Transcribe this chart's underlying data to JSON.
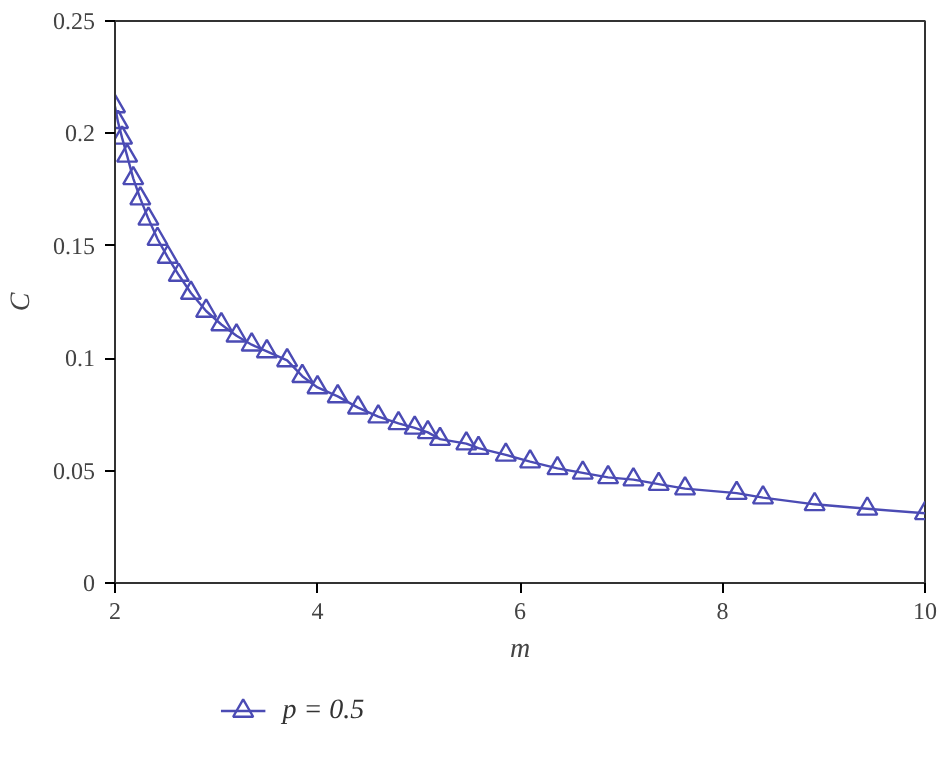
{
  "chart_data": {
    "type": "line",
    "xlabel": "m",
    "ylabel": "C",
    "xlim": [
      2,
      10
    ],
    "ylim": [
      0,
      0.25
    ],
    "xticks": [
      2,
      4,
      6,
      8,
      10
    ],
    "yticks": [
      0,
      0.05,
      0.1,
      0.15,
      0.2,
      0.25
    ],
    "grid": false,
    "legend": "bottom",
    "marker": "triangle",
    "line_style": "solid",
    "series": [
      {
        "name": "p = 0.5",
        "color": "#4b4bb4",
        "x": [
          2.0,
          2.03,
          2.07,
          2.12,
          2.18,
          2.25,
          2.33,
          2.42,
          2.52,
          2.63,
          2.75,
          2.9,
          3.05,
          3.2,
          3.35,
          3.5,
          3.7,
          3.85,
          4.0,
          4.2,
          4.4,
          4.6,
          4.8,
          4.96,
          5.09,
          5.21,
          5.47,
          5.59,
          5.86,
          6.1,
          6.37,
          6.62,
          6.87,
          7.12,
          7.37,
          7.63,
          8.14,
          8.4,
          8.91,
          9.43,
          10.0
        ],
        "values": [
          0.212,
          0.205,
          0.198,
          0.19,
          0.18,
          0.171,
          0.162,
          0.153,
          0.145,
          0.137,
          0.129,
          0.121,
          0.115,
          0.11,
          0.106,
          0.103,
          0.099,
          0.092,
          0.087,
          0.083,
          0.078,
          0.074,
          0.071,
          0.069,
          0.067,
          0.064,
          0.062,
          0.06,
          0.057,
          0.054,
          0.051,
          0.049,
          0.047,
          0.046,
          0.044,
          0.042,
          0.04,
          0.038,
          0.035,
          0.033,
          0.031
        ]
      }
    ]
  }
}
